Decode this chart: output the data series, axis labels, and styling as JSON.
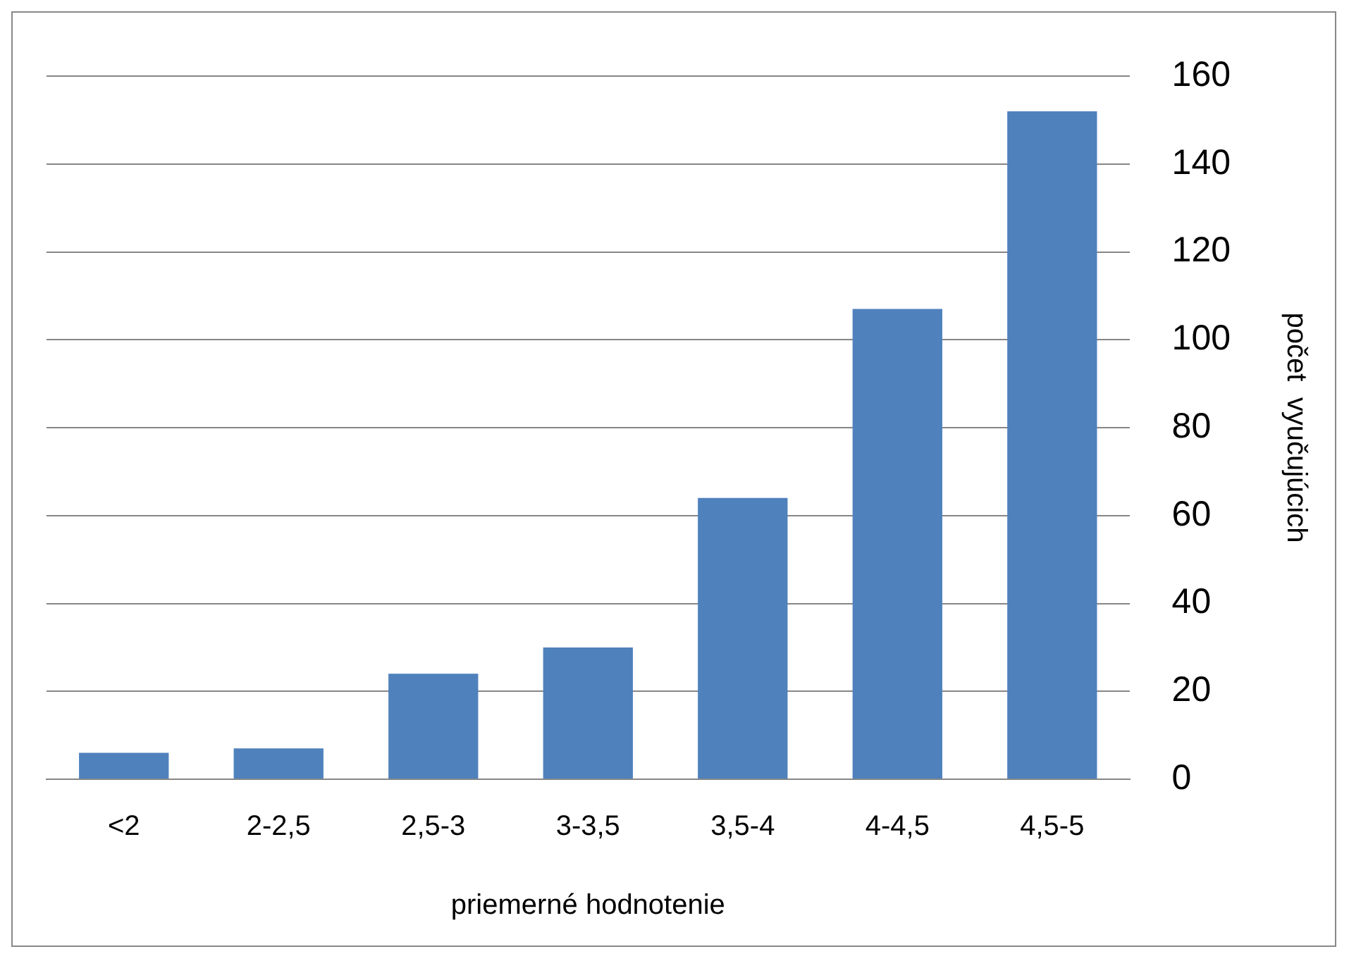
{
  "chart_data": {
    "type": "bar",
    "xlabel": "priemerné hodnotenie",
    "ylabel": "počet  vyučujúcich",
    "categories": [
      "<2",
      "2-2,5",
      "2,5-3",
      "3-3,5",
      "3,5-4",
      "4-4,5",
      "4,5-5"
    ],
    "values": [
      6,
      7,
      24,
      30,
      64,
      107,
      152
    ],
    "color": "#4f81bd",
    "ylim": [
      0,
      160
    ],
    "yticks": [
      0,
      20,
      40,
      60,
      80,
      100,
      120,
      140,
      160
    ],
    "grid": "y",
    "legend": false
  }
}
